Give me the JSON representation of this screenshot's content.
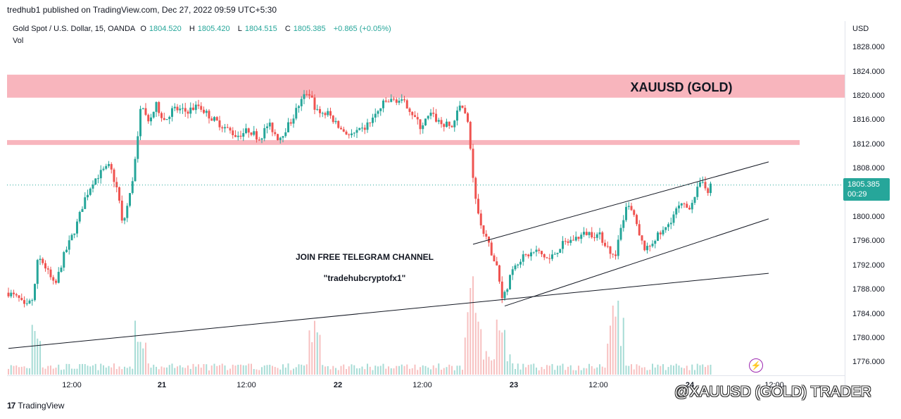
{
  "header": {
    "published_by": "tredhub1 published on TradingView.com, Dec 27, 2022 09:59 UTC+5:30"
  },
  "legend": {
    "symbol": "Gold Spot / U.S. Dollar, 15, OANDA",
    "open_label": "O",
    "open": "1804.520",
    "high_label": "H",
    "high": "1805.420",
    "low_label": "L",
    "low": "1804.515",
    "close_label": "C",
    "close": "1805.385",
    "change": "+0.865 (+0.05%)",
    "vol_label": "Vol"
  },
  "price_axis": {
    "currency": "USD",
    "ticks": [
      "1828.000",
      "1824.000",
      "1820.000",
      "1816.000",
      "1812.000",
      "1808.000",
      "1804.000",
      "1800.000",
      "1796.000",
      "1792.000",
      "1788.000",
      "1784.000",
      "1780.000",
      "1776.000"
    ],
    "last_price": "1805.385",
    "countdown": "00:29"
  },
  "time_axis": {
    "ticks": [
      "12:00",
      "21",
      "12:00",
      "22",
      "12:00",
      "23",
      "12:00",
      "24",
      "12:00"
    ]
  },
  "annotations": {
    "zone_label": "XAUUSD (GOLD)",
    "telegram_line1": "JOIN FREE TELEGRAM CHANNEL",
    "telegram_line2": "\"tradehubcryptofx1\""
  },
  "brand": {
    "name": "TradingView"
  },
  "watermark": {
    "text": "@XAUUSD (GOLD) TRADER"
  },
  "colors": {
    "bull": "#26a69a",
    "bear": "#ef5350",
    "zone": "#f8b5bd",
    "bull_volume": "#a7dcd6",
    "bear_volume": "#f7c0c0",
    "trendline": "#131722"
  },
  "chart_data": {
    "type": "candlestick",
    "title": "Gold Spot / U.S. Dollar, 15, OANDA",
    "y_unit": "USD",
    "ylim": [
      1774,
      1831
    ],
    "x_ticks": [
      "12:00",
      "21",
      "12:00",
      "22",
      "12:00",
      "23",
      "12:00",
      "24",
      "12:00"
    ],
    "anchors": [
      {
        "t": 0.0,
        "p": 1787.6
      },
      {
        "t": 0.5,
        "p": 1786.5
      },
      {
        "t": 0.8,
        "p": 1785.0
      },
      {
        "t": 1.2,
        "p": 1786.8
      },
      {
        "t": 1.4,
        "p": 1794.0
      },
      {
        "t": 1.8,
        "p": 1791.5
      },
      {
        "t": 2.2,
        "p": 1788.5
      },
      {
        "t": 2.6,
        "p": 1793.5
      },
      {
        "t": 3.2,
        "p": 1798.5
      },
      {
        "t": 3.6,
        "p": 1803.0
      },
      {
        "t": 4.0,
        "p": 1806.0
      },
      {
        "t": 4.4,
        "p": 1807.5
      },
      {
        "t": 4.8,
        "p": 1808.5
      },
      {
        "t": 5.2,
        "p": 1804.0
      },
      {
        "t": 5.4,
        "p": 1798.5
      },
      {
        "t": 5.8,
        "p": 1804.5
      },
      {
        "t": 6.1,
        "p": 1812.0
      },
      {
        "t": 6.3,
        "p": 1819.5
      },
      {
        "t": 6.6,
        "p": 1815.5
      },
      {
        "t": 7.0,
        "p": 1818.5
      },
      {
        "t": 7.4,
        "p": 1816.0
      },
      {
        "t": 7.8,
        "p": 1818.0
      },
      {
        "t": 8.4,
        "p": 1817.5
      },
      {
        "t": 9.0,
        "p": 1818.5
      },
      {
        "t": 9.6,
        "p": 1816.5
      },
      {
        "t": 10.2,
        "p": 1815.0
      },
      {
        "t": 10.8,
        "p": 1813.5
      },
      {
        "t": 11.4,
        "p": 1814.5
      },
      {
        "t": 11.9,
        "p": 1813.0
      },
      {
        "t": 12.3,
        "p": 1815.5
      },
      {
        "t": 12.8,
        "p": 1813.0
      },
      {
        "t": 13.4,
        "p": 1816.0
      },
      {
        "t": 13.8,
        "p": 1819.0
      },
      {
        "t": 14.2,
        "p": 1821.0
      },
      {
        "t": 14.6,
        "p": 1817.5
      },
      {
        "t": 15.2,
        "p": 1817.0
      },
      {
        "t": 15.6,
        "p": 1815.0
      },
      {
        "t": 16.2,
        "p": 1813.5
      },
      {
        "t": 16.8,
        "p": 1814.5
      },
      {
        "t": 17.4,
        "p": 1817.0
      },
      {
        "t": 17.8,
        "p": 1819.0
      },
      {
        "t": 18.4,
        "p": 1819.5
      },
      {
        "t": 18.9,
        "p": 1818.5
      },
      {
        "t": 19.5,
        "p": 1815.0
      },
      {
        "t": 20.0,
        "p": 1817.0
      },
      {
        "t": 20.5,
        "p": 1815.5
      },
      {
        "t": 21.0,
        "p": 1815.0
      },
      {
        "t": 21.4,
        "p": 1818.5
      },
      {
        "t": 21.7,
        "p": 1817.5
      },
      {
        "t": 21.9,
        "p": 1810.0
      },
      {
        "t": 22.1,
        "p": 1803.0
      },
      {
        "t": 22.4,
        "p": 1798.0
      },
      {
        "t": 22.8,
        "p": 1795.0
      },
      {
        "t": 23.2,
        "p": 1791.0
      },
      {
        "t": 23.4,
        "p": 1786.5
      },
      {
        "t": 23.8,
        "p": 1790.5
      },
      {
        "t": 24.0,
        "p": 1792.5
      },
      {
        "t": 24.4,
        "p": 1793.5
      },
      {
        "t": 25.0,
        "p": 1794.5
      },
      {
        "t": 25.6,
        "p": 1793.0
      },
      {
        "t": 26.2,
        "p": 1795.5
      },
      {
        "t": 26.8,
        "p": 1796.5
      },
      {
        "t": 27.4,
        "p": 1797.5
      },
      {
        "t": 28.0,
        "p": 1797.0
      },
      {
        "t": 28.4,
        "p": 1795.0
      },
      {
        "t": 28.7,
        "p": 1793.0
      },
      {
        "t": 29.0,
        "p": 1798.0
      },
      {
        "t": 29.3,
        "p": 1802.0
      },
      {
        "t": 29.6,
        "p": 1800.5
      },
      {
        "t": 29.9,
        "p": 1796.5
      },
      {
        "t": 30.2,
        "p": 1794.5
      },
      {
        "t": 30.6,
        "p": 1796.5
      },
      {
        "t": 31.1,
        "p": 1798.0
      },
      {
        "t": 31.5,
        "p": 1800.5
      },
      {
        "t": 31.8,
        "p": 1802.0
      },
      {
        "t": 32.2,
        "p": 1801.5
      },
      {
        "t": 32.6,
        "p": 1804.5
      },
      {
        "t": 32.9,
        "p": 1806.0
      },
      {
        "t": 33.1,
        "p": 1804.5
      },
      {
        "t": 33.3,
        "p": 1805.4
      }
    ],
    "volume_bursts": [
      1.3,
      6.2,
      14.5,
      21.8,
      22.1,
      23.3,
      28.6,
      28.9
    ],
    "horizontal_zones": [
      {
        "label": "XAUUSD (GOLD)",
        "from": 1819.8,
        "to": 1823.6
      },
      {
        "label": "",
        "from": 1812.0,
        "to": 1812.8
      }
    ],
    "trendlines": [
      {
        "t1": 0.0,
        "p1": 1778.4,
        "t2": 36.0,
        "p2": 1790.8
      },
      {
        "t1": 22.0,
        "p1": 1795.6,
        "t2": 36.0,
        "p2": 1809.2
      },
      {
        "t1": 23.5,
        "p1": 1785.4,
        "t2": 36.0,
        "p2": 1799.8
      }
    ],
    "last_price_line": 1805.385,
    "grid": false
  }
}
